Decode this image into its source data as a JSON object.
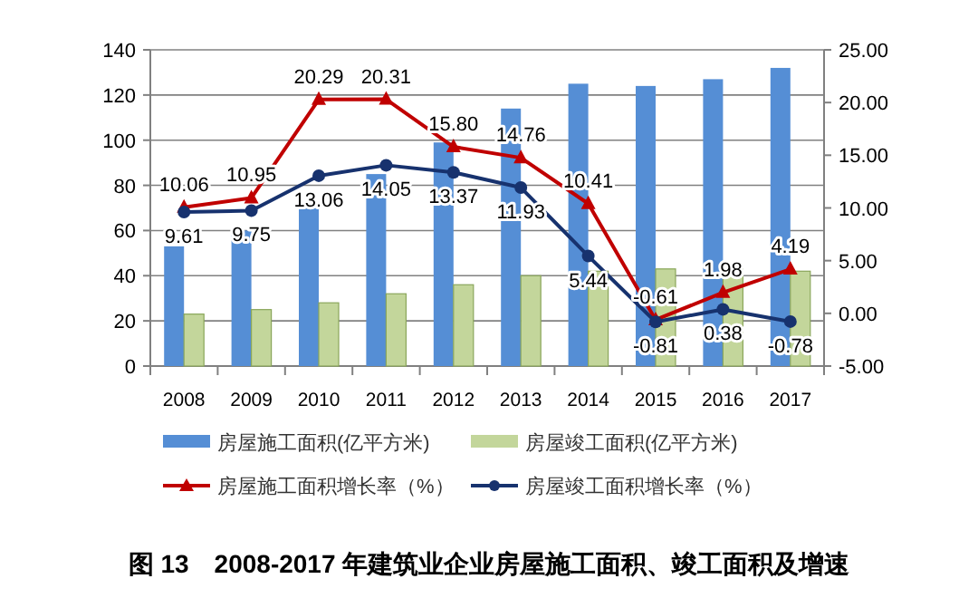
{
  "chart_data": {
    "type": "bar",
    "categories": [
      "2008",
      "2009",
      "2010",
      "2011",
      "2012",
      "2013",
      "2014",
      "2015",
      "2016",
      "2017"
    ],
    "series": [
      {
        "name": "房屋施工面积(亿平方米)",
        "color": "#558ed5",
        "values": [
          53,
          60,
          72,
          85,
          99,
          114,
          125,
          124,
          127,
          132
        ]
      },
      {
        "name": "房屋竣工面积(亿平方米)",
        "color": "#c3d69b",
        "values": [
          23,
          25,
          28,
          32,
          36,
          40,
          42,
          43,
          43,
          42
        ]
      },
      {
        "name": "房屋施工面积增长率（%）",
        "type": "line",
        "axis": "y2",
        "color": "#c00000",
        "marker": "triangle",
        "values": [
          10.06,
          10.95,
          20.29,
          20.31,
          15.8,
          14.76,
          10.41,
          -0.61,
          1.98,
          4.19
        ],
        "value_labels": [
          "10.06",
          "10.95",
          "20.29",
          "20.31",
          "15.80",
          "14.76",
          "10.41",
          "-0.61",
          "1.98",
          "4.19"
        ]
      },
      {
        "name": "房屋竣工面积增长率（%）",
        "type": "line",
        "axis": "y2",
        "color": "#17326e",
        "marker": "circle",
        "values": [
          9.61,
          9.75,
          13.06,
          14.05,
          13.37,
          11.93,
          5.44,
          -0.81,
          0.38,
          -0.78
        ],
        "value_labels": [
          "9.61",
          "9.75",
          "13.06",
          "14.05",
          "13.37",
          "11.93",
          "5.44",
          "-0.81",
          "0.38",
          "-0.78"
        ]
      }
    ],
    "ylim": [
      0,
      140
    ],
    "yticks": [
      0,
      20,
      40,
      60,
      80,
      100,
      120,
      140
    ],
    "y2lim": [
      -5,
      25
    ],
    "y2ticks": [
      {
        "value": -5,
        "label": "-5.00"
      },
      {
        "value": 0,
        "label": "0.00"
      },
      {
        "value": 5,
        "label": "5.00"
      },
      {
        "value": 10,
        "label": "10.00"
      },
      {
        "value": 15,
        "label": "15.00"
      },
      {
        "value": 20,
        "label": "20.00"
      },
      {
        "value": 25,
        "label": "25.00"
      }
    ],
    "grid": "y",
    "legend": "bottom",
    "annotations": [
      "图 13　2008-2017 年建筑业企业房屋施工面积、竣工面积及增速"
    ]
  }
}
